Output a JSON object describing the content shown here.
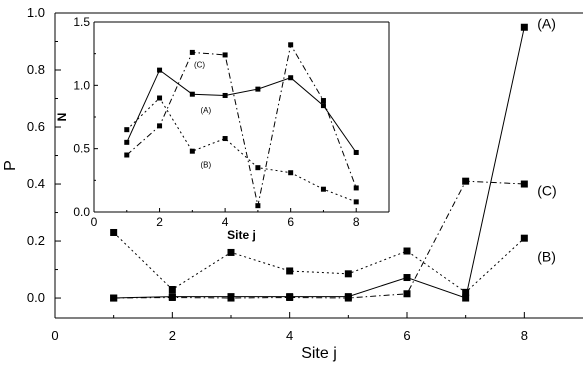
{
  "chart_data": [
    {
      "type": "line",
      "xlabel": "Site j",
      "ylabel": "P",
      "xlim": [
        0,
        9
      ],
      "ylim": [
        -0.07,
        1.0
      ],
      "xticks": [
        0,
        2,
        4,
        6,
        8
      ],
      "yticks": [
        0.0,
        0.2,
        0.4,
        0.6,
        0.8,
        1.0
      ],
      "xtick_labels": [
        "0",
        "2",
        "4",
        "6",
        "8"
      ],
      "ytick_labels": [
        "0.0",
        "0.2",
        "0.4",
        "0.6",
        "0.8",
        "1.0"
      ],
      "x": [
        1,
        2,
        3,
        4,
        5,
        6,
        7,
        8
      ],
      "series": [
        {
          "name": "(A)",
          "style": "solid",
          "values": [
            0.0,
            0.005,
            0.005,
            0.005,
            0.005,
            0.072,
            0.0,
            0.95
          ]
        },
        {
          "name": "(B)",
          "style": "dotted",
          "values": [
            0.23,
            0.03,
            0.16,
            0.095,
            0.085,
            0.165,
            0.02,
            0.21
          ]
        },
        {
          "name": "(C)",
          "style": "dashdot",
          "values": [
            0.0,
            0.002,
            0.0,
            0.002,
            0.0,
            0.015,
            0.41,
            0.4
          ]
        }
      ],
      "grid": false
    },
    {
      "type": "line",
      "inset": true,
      "xlabel": "Site j",
      "ylabel": "N",
      "xlim": [
        0,
        9
      ],
      "ylim": [
        0,
        1.5
      ],
      "xticks": [
        0,
        2,
        4,
        6,
        8
      ],
      "yticks": [
        0.0,
        0.5,
        1.0,
        1.5
      ],
      "xtick_labels": [
        "0",
        "2",
        "4",
        "6",
        "8"
      ],
      "ytick_labels": [
        "0.0",
        "0.5",
        "1.0",
        "1.5"
      ],
      "x": [
        1,
        2,
        3,
        4,
        5,
        6,
        7,
        8
      ],
      "series": [
        {
          "name": "(A)",
          "style": "solid",
          "values": [
            0.55,
            1.12,
            0.93,
            0.92,
            0.97,
            1.06,
            0.84,
            0.47
          ]
        },
        {
          "name": "(B)",
          "style": "dotted",
          "values": [
            0.65,
            0.9,
            0.48,
            0.58,
            0.35,
            0.31,
            0.18,
            0.08
          ]
        },
        {
          "name": "(C)",
          "style": "dashdot",
          "values": [
            0.45,
            0.68,
            1.26,
            1.24,
            0.05,
            1.32,
            0.88,
            0.19
          ]
        }
      ],
      "grid": false
    }
  ]
}
